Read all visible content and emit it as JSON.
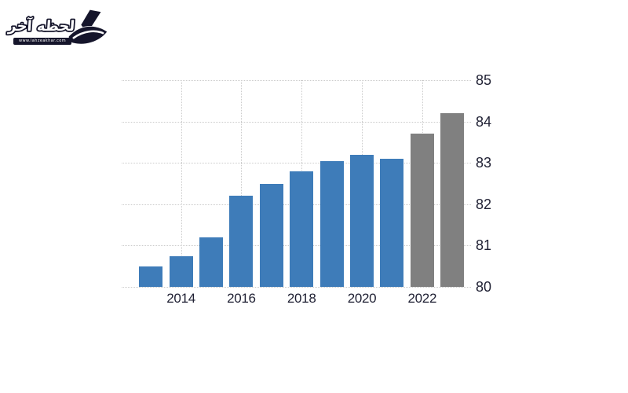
{
  "page": {
    "background": "#ffffff"
  },
  "logo": {
    "brand_text": "لحظه آخر",
    "url_text": "www.lahzeakhar.com",
    "ink_color": "#15152b"
  },
  "chart_data": {
    "type": "bar",
    "x": [
      2013,
      2014,
      2015,
      2016,
      2017,
      2018,
      2019,
      2020,
      2021,
      2022,
      2023
    ],
    "values": [
      80.5,
      80.75,
      81.2,
      82.2,
      82.5,
      82.8,
      83.05,
      83.2,
      83.1,
      83.7,
      84.2
    ],
    "forecast_start_year": 2022,
    "bar_color": "#3e7cb9",
    "forecast_color": "#808080",
    "title": "",
    "xlabel": "",
    "ylabel": "",
    "ylim": [
      80,
      85
    ],
    "yticks": [
      80,
      81,
      82,
      83,
      84,
      85
    ],
    "xticks": [
      2014,
      2016,
      2018,
      2020,
      2022
    ],
    "grid": "dotted",
    "gridline_color": "#cbcbcb",
    "tick_label_color": "#1f2033",
    "legend": "none",
    "y_axis_side": "right"
  }
}
